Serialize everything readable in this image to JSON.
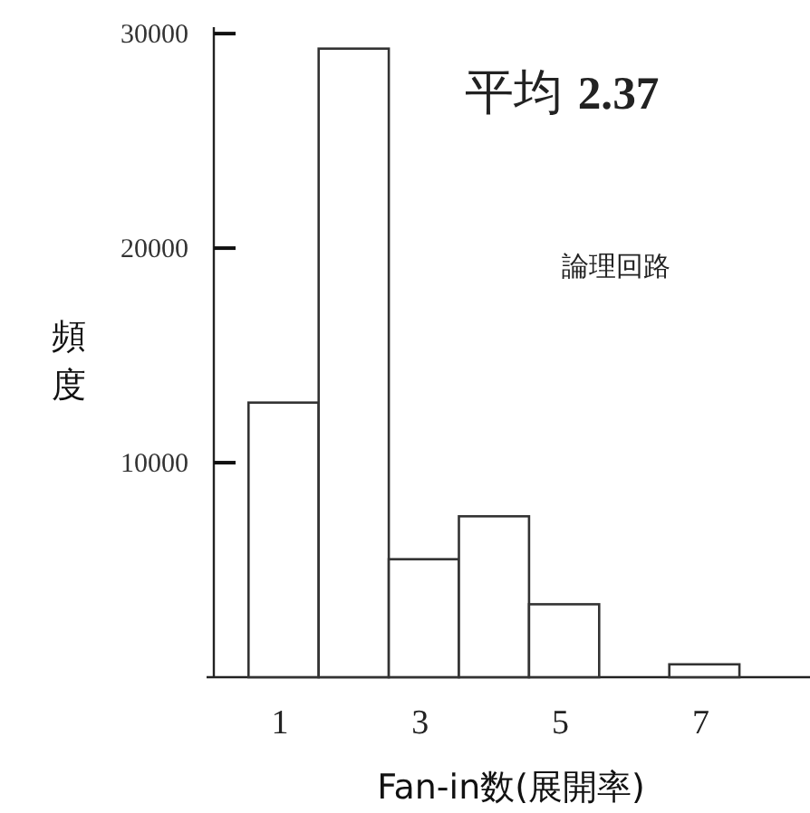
{
  "chart_data": {
    "type": "bar",
    "categories": [
      "1",
      null,
      "3",
      null,
      "5",
      null,
      "7"
    ],
    "values": [
      12800,
      29300,
      5500,
      7500,
      3400,
      null,
      600
    ],
    "color": "#ffffff",
    "ylim": [
      0,
      30300
    ],
    "yticks": [
      10000,
      20000,
      30000
    ],
    "ylabel": "頻度",
    "xlabel": "Fan-in数(展開率)",
    "annotations": [
      "平均 **2.37**",
      "論理回路"
    ],
    "grid": false
  }
}
